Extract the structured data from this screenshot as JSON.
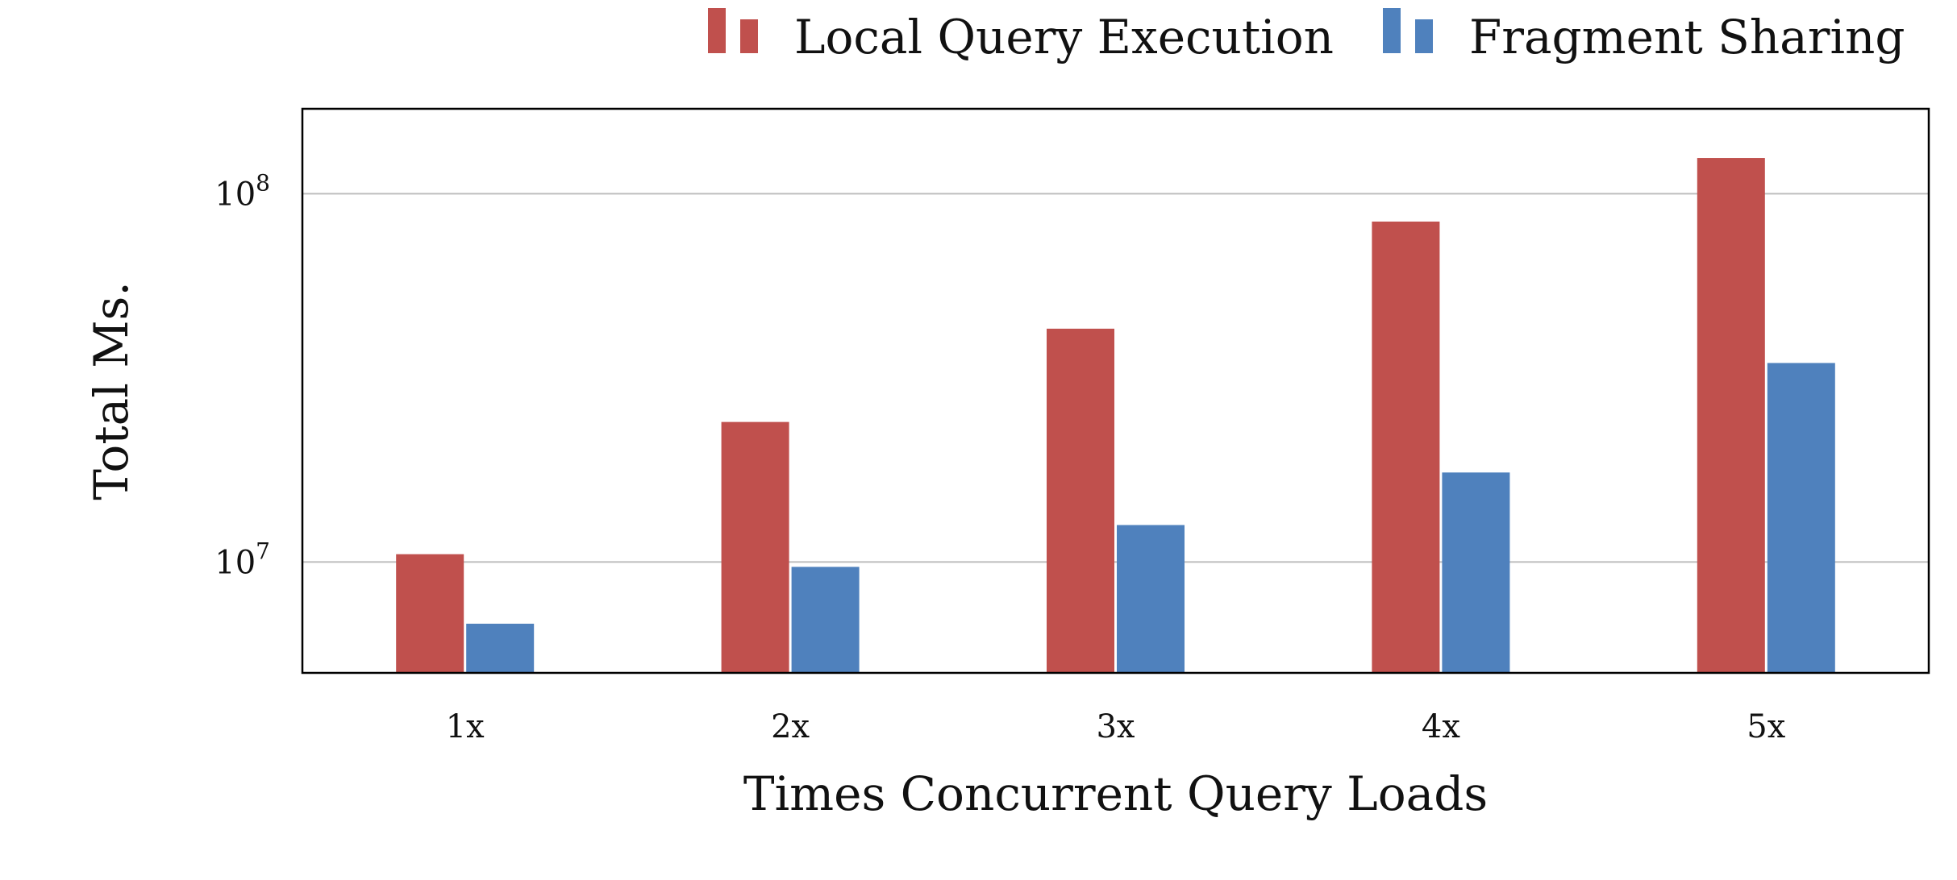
{
  "chart_data": {
    "type": "bar",
    "title": "",
    "xlabel": "Times Concurrent Query Loads",
    "ylabel": "Total Ms.",
    "y_scale": "log",
    "ylim": [
      5000000,
      170000000
    ],
    "yticks": [
      {
        "value": 10000000,
        "base": "10",
        "exp": "7"
      },
      {
        "value": 100000000,
        "base": "10",
        "exp": "8"
      }
    ],
    "grid": "horizontal",
    "legend_position": "top-right",
    "categories": [
      "1x",
      "2x",
      "3x",
      "4x",
      "5x"
    ],
    "series": [
      {
        "name": "Local Query Execution",
        "color": "#c0504d",
        "values": [
          10500000,
          24000000,
          43000000,
          84000000,
          125000000
        ]
      },
      {
        "name": "Fragment Sharing",
        "color": "#4f81bd",
        "values": [
          6800000,
          9700000,
          12600000,
          17500000,
          34700000
        ]
      }
    ]
  }
}
